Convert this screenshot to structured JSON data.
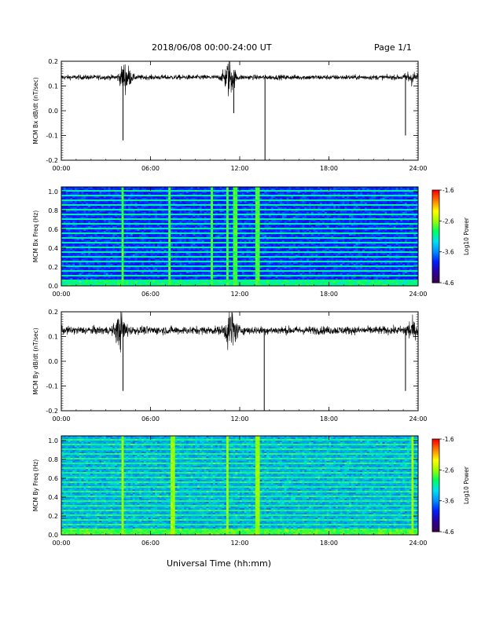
{
  "header": {
    "date_range": "2018/06/08  00:00-24:00 UT",
    "page": "Page 1/1"
  },
  "footer": {
    "xlabel": "Universal Time (hh:mm)"
  },
  "colors": {
    "trace": "#000000",
    "colormap": [
      "#3a0050",
      "#2a00a0",
      "#0020ff",
      "#0090ff",
      "#00e0f0",
      "#00ff60",
      "#9cff00",
      "#ffff00",
      "#ff8000",
      "#ff0000"
    ]
  },
  "chart_data": [
    {
      "type": "line",
      "ylabel": "MCM Bx dB/dt (nT/sec)",
      "x_ticks": [
        "00:00",
        "06:00",
        "12:00",
        "18:00",
        "24:00"
      ],
      "y_ticks": [
        "0.2",
        "0.1",
        "0.0",
        "-0.1",
        "-0.2"
      ],
      "xlim": [
        0,
        24
      ],
      "ylim": [
        -0.2,
        0.2
      ],
      "baseline": 0.135,
      "noise_amplitude": 0.012,
      "bursts": [
        {
          "x": 4.3,
          "amplitude": 0.07
        },
        {
          "x": 11.3,
          "amplitude": 0.09
        },
        {
          "x": 23.5,
          "amplitude": 0.03
        }
      ],
      "spikes": [
        {
          "x": 4.15,
          "y": -0.12
        },
        {
          "x": 11.6,
          "y": -0.01
        },
        {
          "x": 13.7,
          "y": -0.2
        },
        {
          "x": 23.15,
          "y": -0.1
        }
      ]
    },
    {
      "type": "heatmap",
      "ylabel": "MCM Bx Freq (Hz)",
      "colorbar_label": "Log10 Power",
      "x_ticks": [
        "00:00",
        "06:00",
        "12:00",
        "18:00",
        "24:00"
      ],
      "y_ticks": [
        "1.0",
        "0.8",
        "0.6",
        "0.4",
        "0.2",
        "0.0"
      ],
      "colorbar_ticks": [
        "-1.6",
        "-2.6",
        "-3.6",
        "-4.6"
      ],
      "xlim": [
        0,
        24
      ],
      "ylim": [
        0,
        1.05
      ],
      "zlim": [
        -4.6,
        -1.6
      ],
      "background_power": -3.9,
      "harmonic_spacing_hz": 0.05,
      "harmonic_power": -3.1,
      "low_freq_power": -3.0,
      "bright_columns_hr": [
        4.1,
        7.3,
        10.1,
        11.2,
        11.7,
        13.2
      ]
    },
    {
      "type": "line",
      "ylabel": "MCM By dB/dt (nT/sec)",
      "x_ticks": [
        "00:00",
        "06:00",
        "12:00",
        "18:00",
        "24:00"
      ],
      "y_ticks": [
        "0.2",
        "0.1",
        "0.0",
        "-0.1",
        "-0.2"
      ],
      "xlim": [
        0,
        24
      ],
      "ylim": [
        -0.2,
        0.2
      ],
      "baseline": 0.125,
      "noise_amplitude": 0.02,
      "bursts": [
        {
          "x": 4.0,
          "amplitude": 0.08
        },
        {
          "x": 11.4,
          "amplitude": 0.1
        },
        {
          "x": 23.5,
          "amplitude": 0.04
        }
      ],
      "spikes": [
        {
          "x": 4.15,
          "y": -0.12
        },
        {
          "x": 13.65,
          "y": -0.2
        },
        {
          "x": 23.15,
          "y": -0.12
        }
      ]
    },
    {
      "type": "heatmap",
      "ylabel": "MCM By Freq (Hz)",
      "colorbar_label": "Log10 Power",
      "x_ticks": [
        "00:00",
        "06:00",
        "12:00",
        "18:00",
        "24:00"
      ],
      "y_ticks": [
        "1.0",
        "0.8",
        "0.6",
        "0.4",
        "0.2",
        "0.0"
      ],
      "colorbar_ticks": [
        "-1.6",
        "-2.6",
        "-3.6",
        "-4.6"
      ],
      "xlim": [
        0,
        24
      ],
      "ylim": [
        0,
        1.05
      ],
      "zlim": [
        -4.6,
        -1.6
      ],
      "background_power": -3.5,
      "harmonic_spacing_hz": 0.05,
      "harmonic_power": -2.9,
      "low_freq_power": -2.8,
      "bright_columns_hr": [
        4.1,
        7.5,
        11.2,
        13.2,
        23.6
      ]
    }
  ]
}
